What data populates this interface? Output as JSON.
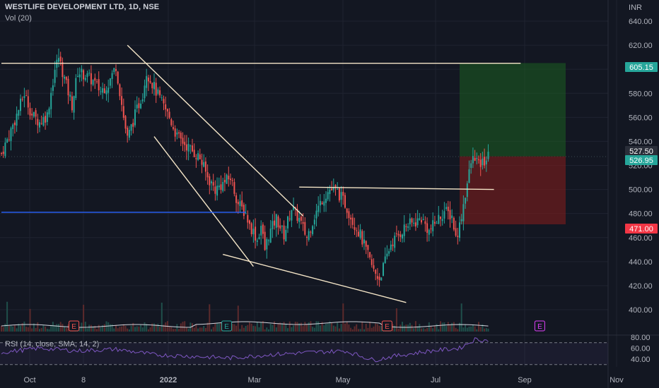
{
  "header": {
    "title": "WESTLIFE DEVELOPMENT LTD, 1D, NSE",
    "volume_label": "Vol (20)",
    "currency": "INR"
  },
  "rsi_panel": {
    "label": "RSI (14, close, SMA, 14, 2)",
    "ticks": [
      "80.00",
      "60.00",
      "40.00"
    ]
  },
  "colors": {
    "background": "#131722",
    "up": "#26a69a",
    "down": "#ef5350",
    "trendline": "#f5e6c8",
    "support": "#2962ff",
    "profit_zone": "#1b5e20",
    "loss_zone": "#7f1d1d",
    "rsi_line": "#7e57c2"
  },
  "chart_data": {
    "type": "candlestick",
    "x_ticks": [
      "Oct",
      "8",
      "2022",
      "Mar",
      "May",
      "Jul",
      "Sep",
      "Nov"
    ],
    "y_ticks": [
      "640.00",
      "620.00",
      "600.00",
      "580.00",
      "560.00",
      "540.00",
      "520.00",
      "500.00",
      "480.00",
      "460.00",
      "440.00",
      "420.00",
      "400.00"
    ],
    "ylim": [
      390,
      648
    ],
    "price_labels": [
      {
        "text": "605.15",
        "value": 605.15,
        "color": "#26a69a"
      },
      {
        "text": "527.50",
        "value": 527.5,
        "color": "#2a2e39"
      },
      {
        "text": "526.95",
        "value": 526.95,
        "color": "#26a69a"
      },
      {
        "text": "471.00",
        "value": 471.0,
        "color": "#f23645"
      }
    ],
    "earnings_markers": [
      {
        "text": "E",
        "color": "#ef5350",
        "slot": 38
      },
      {
        "text": "E",
        "color": "#26a69a",
        "slot": 118
      },
      {
        "text": "E",
        "color": "#ef5350",
        "slot": 202
      },
      {
        "text": "E",
        "color": "#e040fb",
        "slot": 282
      }
    ],
    "price_path": [
      [
        0,
        530
      ],
      [
        4,
        545
      ],
      [
        8,
        562
      ],
      [
        12,
        580
      ],
      [
        16,
        562
      ],
      [
        20,
        556
      ],
      [
        24,
        562
      ],
      [
        28,
        600
      ],
      [
        30,
        610
      ],
      [
        33,
        592
      ],
      [
        37,
        570
      ],
      [
        40,
        598
      ],
      [
        44,
        595
      ],
      [
        48,
        590
      ],
      [
        52,
        582
      ],
      [
        56,
        588
      ],
      [
        60,
        603
      ],
      [
        64,
        560
      ],
      [
        66,
        542
      ],
      [
        70,
        562
      ],
      [
        74,
        580
      ],
      [
        76,
        598
      ],
      [
        80,
        585
      ],
      [
        84,
        572
      ],
      [
        88,
        560
      ],
      [
        92,
        544
      ],
      [
        96,
        538
      ],
      [
        100,
        532
      ],
      [
        104,
        526
      ],
      [
        108,
        510
      ],
      [
        112,
        500
      ],
      [
        116,
        505
      ],
      [
        120,
        510
      ],
      [
        124,
        488
      ],
      [
        128,
        480
      ],
      [
        130,
        470
      ],
      [
        132,
        465
      ],
      [
        134,
        458
      ],
      [
        136,
        470
      ],
      [
        138,
        450
      ],
      [
        140,
        462
      ],
      [
        144,
        476
      ],
      [
        148,
        462
      ],
      [
        152,
        485
      ],
      [
        156,
        475
      ],
      [
        160,
        460
      ],
      [
        164,
        478
      ],
      [
        168,
        492
      ],
      [
        172,
        500
      ],
      [
        176,
        498
      ],
      [
        180,
        488
      ],
      [
        184,
        474
      ],
      [
        188,
        462
      ],
      [
        192,
        445
      ],
      [
        195,
        432
      ],
      [
        198,
        426
      ],
      [
        201,
        440
      ],
      [
        204,
        455
      ],
      [
        208,
        462
      ],
      [
        212,
        470
      ],
      [
        216,
        472
      ],
      [
        220,
        476
      ],
      [
        224,
        465
      ],
      [
        228,
        474
      ],
      [
        232,
        482
      ],
      [
        236,
        478
      ],
      [
        238,
        460
      ],
      [
        240,
        470
      ],
      [
        242,
        488
      ],
      [
        244,
        505
      ],
      [
        246,
        522
      ],
      [
        248,
        528
      ],
      [
        250,
        520
      ],
      [
        252,
        522
      ],
      [
        255,
        527
      ]
    ],
    "volume_baseline": 20,
    "rsi_path": [
      [
        0,
        52
      ],
      [
        20,
        60
      ],
      [
        40,
        55
      ],
      [
        60,
        58
      ],
      [
        80,
        48
      ],
      [
        100,
        45
      ],
      [
        120,
        42
      ],
      [
        140,
        48
      ],
      [
        160,
        52
      ],
      [
        180,
        55
      ],
      [
        195,
        38
      ],
      [
        205,
        45
      ],
      [
        225,
        55
      ],
      [
        240,
        60
      ],
      [
        248,
        76
      ],
      [
        255,
        74
      ]
    ],
    "drawings": [
      {
        "type": "horizontal",
        "from": [
          0,
          605
        ],
        "to": [
          272,
          605
        ],
        "color": "#f5e6c8"
      },
      {
        "type": "trendline",
        "from": [
          66,
          620
        ],
        "to": [
          158,
          478
        ],
        "color": "#f5e6c8"
      },
      {
        "type": "trendline",
        "from": [
          80,
          544
        ],
        "to": [
          132,
          436
        ],
        "color": "#f5e6c8"
      },
      {
        "type": "trendline",
        "from": [
          116,
          446
        ],
        "to": [
          212,
          406
        ],
        "color": "#f5e6c8"
      },
      {
        "type": "horizontal",
        "from": [
          156,
          502
        ],
        "to": [
          258,
          500
        ],
        "color": "#f5e6c8"
      },
      {
        "type": "horizontal",
        "from": [
          0,
          481
        ],
        "to": [
          128,
          481
        ],
        "color": "#2962ff"
      }
    ],
    "position": {
      "entry": 527.5,
      "target": 605.15,
      "stop": 471.0,
      "from_slot": 258,
      "to_slot": 318
    }
  }
}
